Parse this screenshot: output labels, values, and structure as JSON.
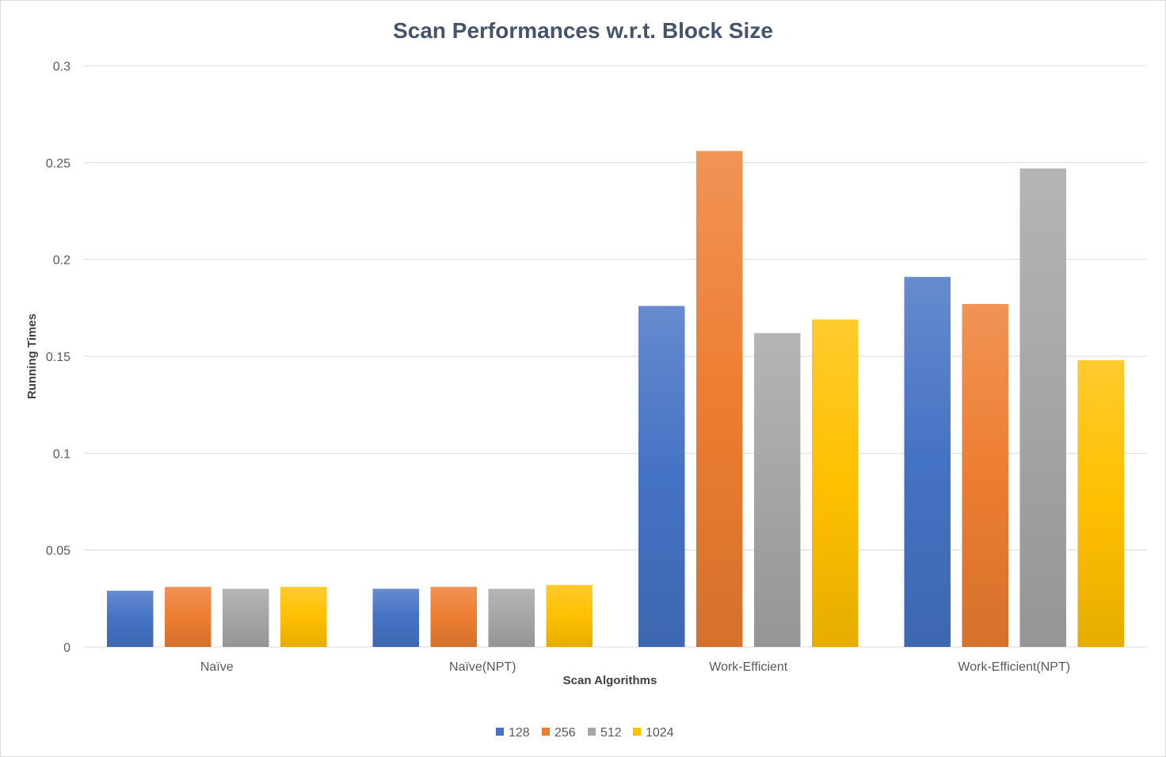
{
  "chart_data": {
    "type": "bar",
    "title": "Scan Performances w.r.t. Block Size",
    "xlabel": "Scan Algorithms",
    "ylabel": "Running Times",
    "categories": [
      "Naïve",
      "Naïve(NPT)",
      "Work-Efficient",
      "Work-Efficient(NPT)"
    ],
    "series": [
      {
        "name": "128",
        "color": "#4472c4",
        "values": [
          0.029,
          0.03,
          0.176,
          0.191
        ]
      },
      {
        "name": "256",
        "color": "#ed7d31",
        "values": [
          0.031,
          0.031,
          0.256,
          0.177
        ]
      },
      {
        "name": "512",
        "color": "#a5a5a5",
        "values": [
          0.03,
          0.03,
          0.162,
          0.247
        ]
      },
      {
        "name": "1024",
        "color": "#ffc000",
        "values": [
          0.031,
          0.032,
          0.169,
          0.148
        ]
      }
    ],
    "ylim": [
      0,
      0.3
    ],
    "yticks": [
      "0",
      "0.05",
      "0.1",
      "0.15",
      "0.2",
      "0.25",
      "0.3"
    ],
    "grid": true,
    "legend_position": "bottom"
  }
}
